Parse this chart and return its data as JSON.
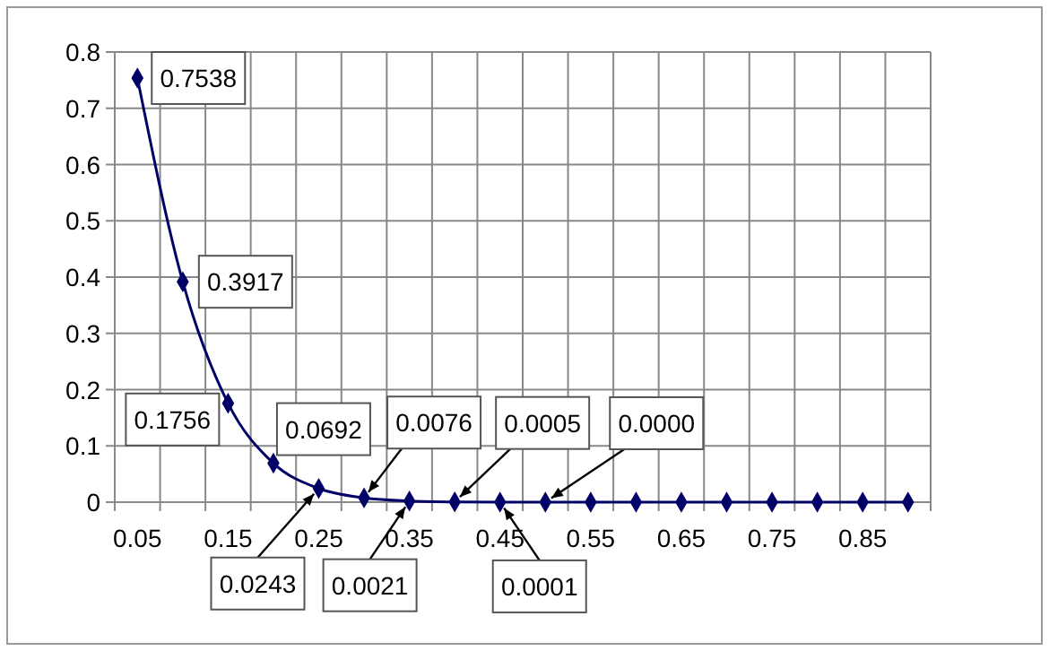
{
  "chart_data": {
    "type": "line",
    "categories": [
      "0.05",
      null,
      "0.15",
      null,
      "0.25",
      null,
      "0.35",
      null,
      "0.45",
      null,
      "0.55",
      null,
      "0.65",
      null,
      "0.75",
      null,
      "0.85",
      null
    ],
    "series": [
      {
        "color": "#000066",
        "values": [
          0.7538,
          0.3917,
          0.1756,
          0.0692,
          0.0243,
          0.0076,
          0.0021,
          0.0005,
          0.0001,
          0.0,
          0,
          0,
          0,
          0,
          0,
          0,
          0,
          0
        ],
        "value_labels": [
          "0.7538",
          "0.3917",
          "0.1756",
          "0.0692",
          "0.0243",
          "0.0076",
          "0.0021",
          "0.0005",
          "0.0001",
          "0.0000",
          null,
          null,
          null,
          null,
          null,
          null,
          null,
          null
        ]
      }
    ],
    "ylim": [
      0,
      0.8
    ],
    "yticks": [
      0,
      0.1,
      0.2,
      0.3,
      0.4,
      0.5,
      0.6,
      0.7,
      0.8
    ],
    "grid": true,
    "marker": "diamond",
    "line_style": "solid"
  }
}
